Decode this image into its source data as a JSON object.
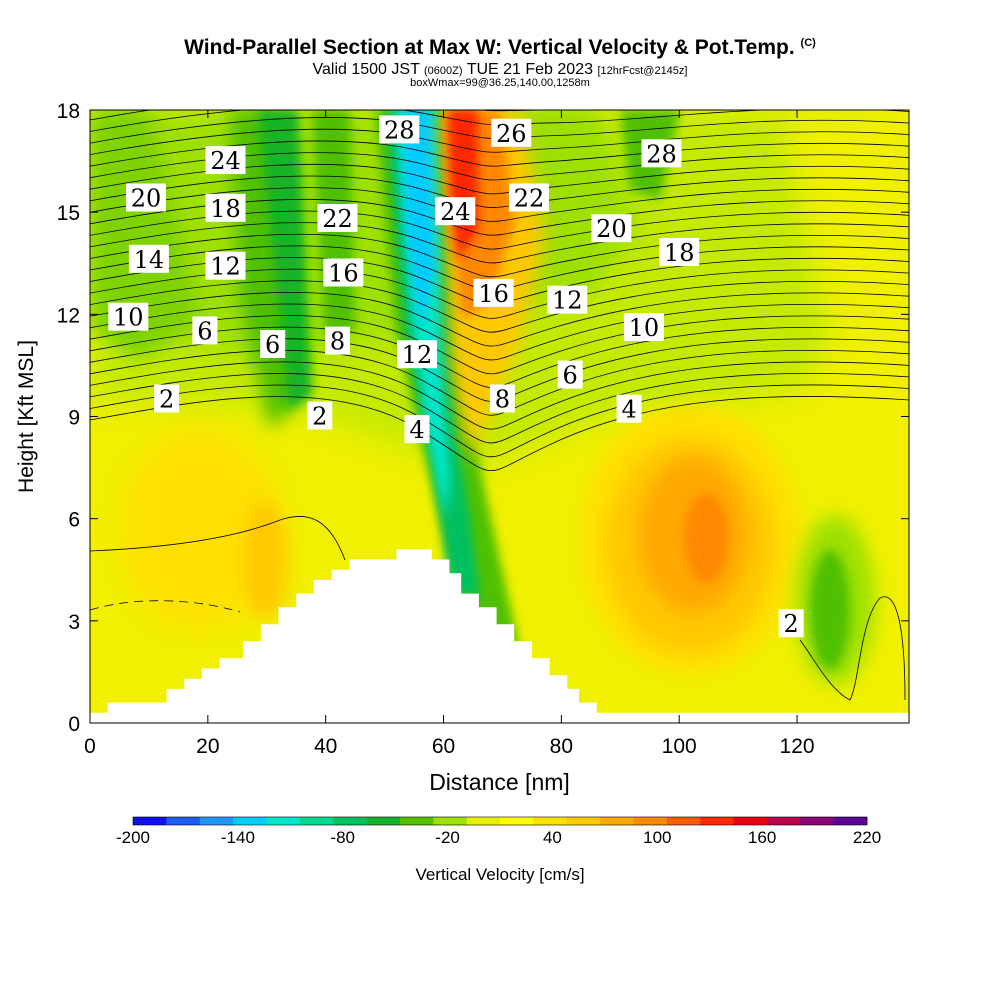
{
  "header": {
    "title": "Wind-Parallel Section at Max W: Vertical Velocity & Pot.Temp.",
    "copyright": "(C)",
    "valid_prefix": "Valid 1500 JST",
    "valid_utc": "(0600Z)",
    "valid_date": "TUE 21 Feb 2023",
    "forecast": "[12hrFcst@2145z]",
    "box_info": "boxWmax=99@36.25,140.00,1258m"
  },
  "chart_data": {
    "type": "heatmap",
    "xlabel": "Distance [nm]",
    "ylabel": "Height [Kft MSL]",
    "xlim": [
      0,
      139
    ],
    "ylim": [
      0,
      18
    ],
    "x_ticks": [
      0,
      20,
      40,
      60,
      80,
      100,
      120
    ],
    "y_ticks": [
      0,
      3,
      6,
      9,
      12,
      15,
      18
    ],
    "colorbar": {
      "label": "Vertical Velocity [cm/s]",
      "tick_labels": [
        "-200",
        "-140",
        "-80",
        "-20",
        "40",
        "100",
        "160",
        "220"
      ],
      "levels": [
        -200,
        -180,
        -160,
        -140,
        -120,
        -100,
        -80,
        -60,
        -40,
        -20,
        0,
        20,
        40,
        60,
        80,
        100,
        120,
        140,
        160,
        180,
        200,
        220
      ],
      "colors": [
        "#1010f0",
        "#1a5cff",
        "#1e96ff",
        "#00ccff",
        "#00e6cc",
        "#00d890",
        "#00c060",
        "#14b428",
        "#50c000",
        "#9ee000",
        "#e6f000",
        "#ffff00",
        "#ffe000",
        "#ffc800",
        "#ffa800",
        "#ff8800",
        "#ff5c00",
        "#ff2800",
        "#e60014",
        "#bb0050",
        "#8c0078",
        "#5c0096"
      ]
    },
    "theta_contour_labels": [
      {
        "text": "24",
        "x": 23,
        "y": 16.5
      },
      {
        "text": "20",
        "x": 9.5,
        "y": 15.4
      },
      {
        "text": "18",
        "x": 23,
        "y": 15.1
      },
      {
        "text": "14",
        "x": 10,
        "y": 13.6
      },
      {
        "text": "12",
        "x": 23,
        "y": 13.4
      },
      {
        "text": "10",
        "x": 6.5,
        "y": 11.9
      },
      {
        "text": "6",
        "x": 19.5,
        "y": 11.5
      },
      {
        "text": "6",
        "x": 31,
        "y": 11.1
      },
      {
        "text": "2",
        "x": 13,
        "y": 9.5
      },
      {
        "text": "28",
        "x": 52.5,
        "y": 17.4
      },
      {
        "text": "22",
        "x": 42,
        "y": 14.8
      },
      {
        "text": "16",
        "x": 43,
        "y": 13.2
      },
      {
        "text": "8",
        "x": 42,
        "y": 11.2
      },
      {
        "text": "12",
        "x": 55.5,
        "y": 10.8
      },
      {
        "text": "2",
        "x": 39,
        "y": 9.0
      },
      {
        "text": "4",
        "x": 55.5,
        "y": 8.6
      },
      {
        "text": "24",
        "x": 62,
        "y": 15.0
      },
      {
        "text": "26",
        "x": 71.5,
        "y": 17.3
      },
      {
        "text": "22",
        "x": 74.5,
        "y": 15.4
      },
      {
        "text": "16",
        "x": 68.5,
        "y": 12.6
      },
      {
        "text": "8",
        "x": 70,
        "y": 9.5
      },
      {
        "text": "12",
        "x": 81,
        "y": 12.4
      },
      {
        "text": "6",
        "x": 81.5,
        "y": 10.2
      },
      {
        "text": "20",
        "x": 88.5,
        "y": 14.5
      },
      {
        "text": "28",
        "x": 97,
        "y": 16.7
      },
      {
        "text": "18",
        "x": 100,
        "y": 13.8
      },
      {
        "text": "10",
        "x": 94,
        "y": 11.6
      },
      {
        "text": "4",
        "x": 91.5,
        "y": 9.2
      },
      {
        "text": "2",
        "x": 119,
        "y": 2.9
      }
    ],
    "terrain": [
      [
        0,
        0.3
      ],
      [
        3,
        0.3
      ],
      [
        3,
        0.6
      ],
      [
        13,
        0.6
      ],
      [
        13,
        1.0
      ],
      [
        16,
        1.0
      ],
      [
        16,
        1.3
      ],
      [
        19,
        1.3
      ],
      [
        19,
        1.6
      ],
      [
        22,
        1.6
      ],
      [
        22,
        1.9
      ],
      [
        26,
        1.9
      ],
      [
        26,
        2.4
      ],
      [
        29,
        2.4
      ],
      [
        29,
        2.9
      ],
      [
        32,
        2.9
      ],
      [
        32,
        3.4
      ],
      [
        35,
        3.4
      ],
      [
        35,
        3.8
      ],
      [
        38,
        3.8
      ],
      [
        38,
        4.2
      ],
      [
        41,
        4.2
      ],
      [
        41,
        4.5
      ],
      [
        44,
        4.5
      ],
      [
        44,
        4.8
      ],
      [
        52,
        4.8
      ],
      [
        52,
        5.1
      ],
      [
        58,
        5.1
      ],
      [
        58,
        4.8
      ],
      [
        61,
        4.8
      ],
      [
        61,
        4.4
      ],
      [
        63,
        4.4
      ],
      [
        63,
        3.8
      ],
      [
        66,
        3.8
      ],
      [
        66,
        3.4
      ],
      [
        69,
        3.4
      ],
      [
        69,
        2.9
      ],
      [
        72,
        2.9
      ],
      [
        72,
        2.4
      ],
      [
        75,
        2.4
      ],
      [
        75,
        1.9
      ],
      [
        78,
        1.9
      ],
      [
        78,
        1.4
      ],
      [
        81,
        1.4
      ],
      [
        81,
        1.0
      ],
      [
        83,
        1.0
      ],
      [
        83,
        0.6
      ],
      [
        86,
        0.6
      ],
      [
        86,
        0.3
      ],
      [
        139,
        0.3
      ]
    ],
    "x_scale": "linear",
    "y_scale": "linear",
    "grid": false,
    "features": [
      "filled contours: vertical velocity",
      "line contours: potential temperature"
    ]
  }
}
